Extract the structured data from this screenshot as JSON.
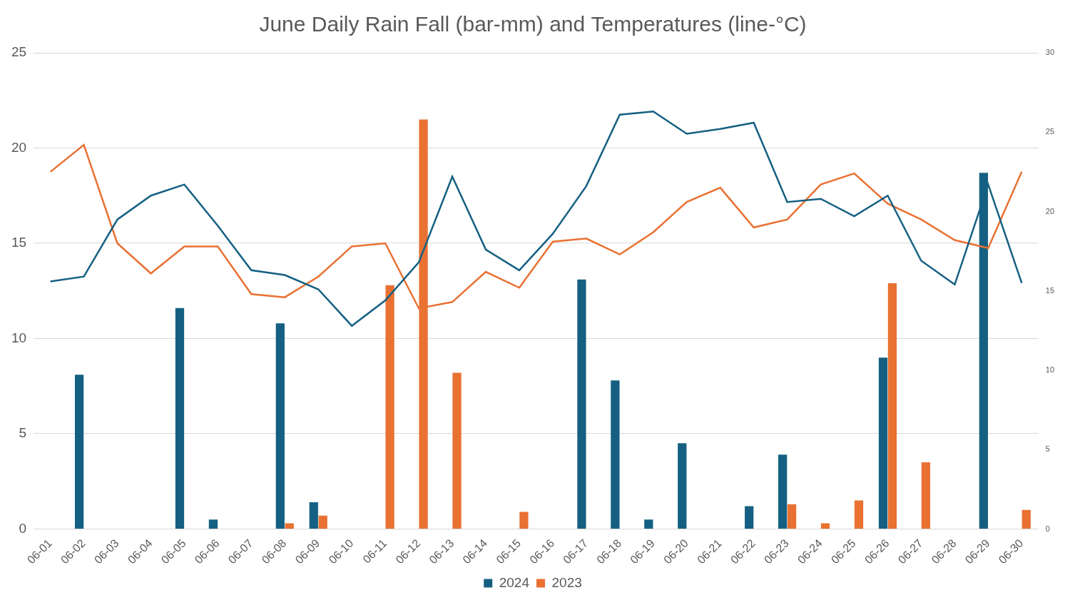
{
  "chart_data": {
    "type": "bar",
    "title": "June Daily Rain Fall (bar-mm) and Temperatures (line-°C)",
    "categories": [
      "06-01",
      "06-02",
      "06-03",
      "06-04",
      "06-05",
      "06-06",
      "06-07",
      "06-08",
      "06-09",
      "06-10",
      "06-11",
      "06-12",
      "06-13",
      "06-14",
      "06-15",
      "06-16",
      "06-17",
      "06-18",
      "06-19",
      "06-20",
      "06-21",
      "06-22",
      "06-23",
      "06-24",
      "06-25",
      "06-26",
      "06-27",
      "06-28",
      "06-29",
      "06-30"
    ],
    "series": [
      {
        "name": "2024",
        "type": "bar",
        "color": "#156082",
        "values": [
          0,
          8.1,
          0,
          0,
          11.6,
          0.5,
          0,
          10.8,
          1.4,
          0,
          0,
          0,
          0,
          0,
          0,
          0,
          13.1,
          7.8,
          0.5,
          4.5,
          0,
          1.2,
          3.9,
          0,
          0,
          9.0,
          0,
          0,
          18.7,
          0
        ]
      },
      {
        "name": "2023",
        "type": "bar",
        "color": "#e97132",
        "values": [
          0,
          0,
          0,
          0,
          0,
          0,
          0,
          0.3,
          0.7,
          0,
          12.8,
          21.5,
          8.2,
          0,
          0.9,
          0,
          0,
          0,
          0,
          0,
          0,
          0,
          1.3,
          0.3,
          1.5,
          12.9,
          3.5,
          0,
          0,
          1.0
        ]
      },
      {
        "name": "2024",
        "type": "line",
        "color": "#156082",
        "axis": "y2",
        "values": [
          15.6,
          15.9,
          19.5,
          21.0,
          21.7,
          19.1,
          16.3,
          16.0,
          15.1,
          12.8,
          14.4,
          16.8,
          22.2,
          17.6,
          16.3,
          18.6,
          21.6,
          26.1,
          26.3,
          24.9,
          25.2,
          25.6,
          20.6,
          20.8,
          19.7,
          21.0,
          16.9,
          15.4,
          21.7,
          15.5
        ]
      },
      {
        "name": "2023",
        "type": "line",
        "color": "#e97132",
        "axis": "y2",
        "values": [
          22.5,
          24.2,
          18.0,
          16.1,
          17.8,
          17.8,
          14.8,
          14.6,
          15.9,
          17.8,
          18.0,
          13.9,
          14.3,
          16.2,
          15.2,
          18.1,
          18.3,
          17.3,
          18.7,
          20.6,
          21.5,
          19.0,
          19.5,
          21.7,
          22.4,
          20.5,
          19.5,
          18.2,
          17.7,
          22.5
        ]
      }
    ],
    "ylim": [
      0,
      25
    ],
    "yticks": [
      0,
      5,
      10,
      15,
      20,
      25
    ],
    "y2lim": [
      0,
      30
    ],
    "y2ticks": [
      0,
      5,
      10,
      15,
      20,
      25,
      30
    ],
    "grid": true,
    "legend": "bottom"
  }
}
